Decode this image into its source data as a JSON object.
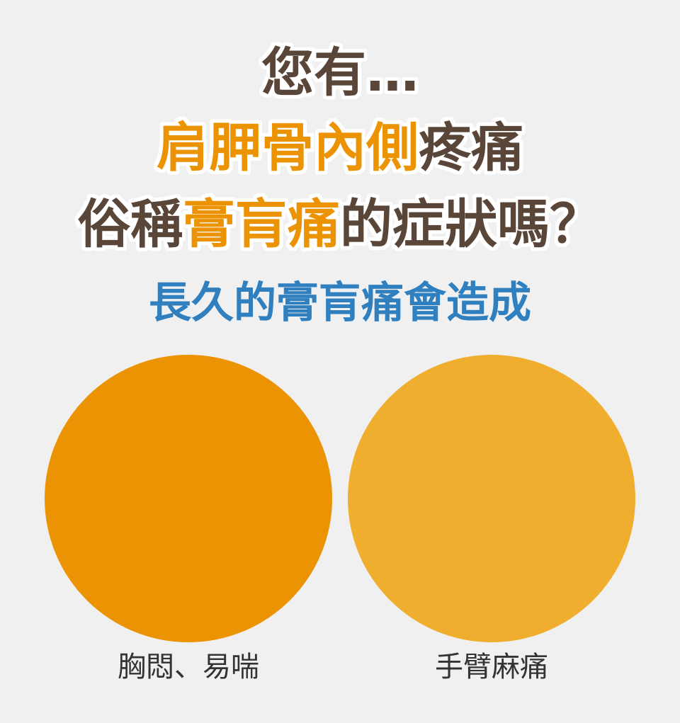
{
  "headline": {
    "line1": "您有…",
    "line2_accent": "肩胛骨內側",
    "line2_rest": "疼痛",
    "line3_prefix": "俗稱",
    "line3_accent": "膏肓痛",
    "line3_suffix": "的症狀嗎？"
  },
  "subheading": "長久的膏肓痛會造成",
  "cards": [
    {
      "label": "胸悶、易喘",
      "color": "#ec9304"
    },
    {
      "label": "手臂麻痛",
      "color": "#f0ae2e"
    }
  ],
  "colors": {
    "background": "#f0f0f0",
    "headline_text": "#5a4638",
    "headline_accent": "#ec9304",
    "subheading": "#3080c0"
  }
}
